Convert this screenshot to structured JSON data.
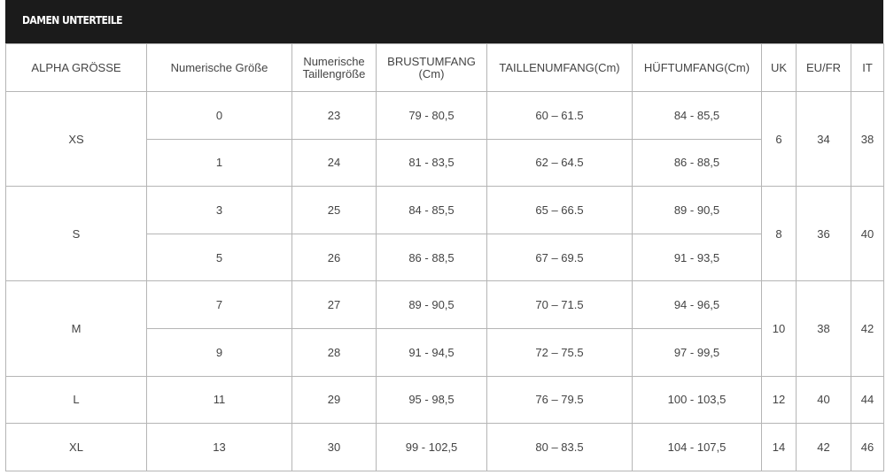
{
  "title": "DAMEN UNTERTEILE",
  "headers": [
    "ALPHA GRÖSSE",
    "Numerische Größe",
    "Numerische Taillengröße",
    "BRUSTUMFANG (Cm)",
    "TAILLENUMFANG(Cm)",
    "HÜFTUMFANG(Cm)",
    "UK",
    "EU/FR",
    "IT"
  ],
  "groups": [
    {
      "alpha": "XS",
      "uk": "6",
      "eu": "34",
      "it": "38",
      "rows": [
        {
          "num": "0",
          "waist_size": "23",
          "bust": "79 - 80,5",
          "waist": "60 – 61.5",
          "hip": "84 - 85,5"
        },
        {
          "num": "1",
          "waist_size": "24",
          "bust": "81 - 83,5",
          "waist": "62 – 64.5",
          "hip": "86 - 88,5"
        }
      ]
    },
    {
      "alpha": "S",
      "uk": "8",
      "eu": "36",
      "it": "40",
      "rows": [
        {
          "num": "3",
          "waist_size": "25",
          "bust": "84 - 85,5",
          "waist": "65 – 66.5",
          "hip": "89 - 90,5"
        },
        {
          "num": "5",
          "waist_size": "26",
          "bust": "86 - 88,5",
          "waist": "67 – 69.5",
          "hip": "91 - 93,5"
        }
      ]
    },
    {
      "alpha": "M",
      "uk": "10",
      "eu": "38",
      "it": "42",
      "rows": [
        {
          "num": "7",
          "waist_size": "27",
          "bust": "89 - 90,5",
          "waist": "70 – 71.5",
          "hip": "94 - 96,5"
        },
        {
          "num": "9",
          "waist_size": "28",
          "bust": "91 - 94,5",
          "waist": "72 – 75.5",
          "hip": "97 - 99,5"
        }
      ]
    },
    {
      "alpha": "L",
      "uk": "12",
      "eu": "40",
      "it": "44",
      "rows": [
        {
          "num": "11",
          "waist_size": "29",
          "bust": "95 - 98,5",
          "waist": "76 – 79.5",
          "hip": "100 - 103,5"
        }
      ]
    },
    {
      "alpha": "XL",
      "uk": "14",
      "eu": "42",
      "it": "46",
      "rows": [
        {
          "num": "13",
          "waist_size": "30",
          "bust": "99 - 102,5",
          "waist": "80 – 83.5",
          "hip": "104 - 107,5"
        }
      ]
    }
  ]
}
